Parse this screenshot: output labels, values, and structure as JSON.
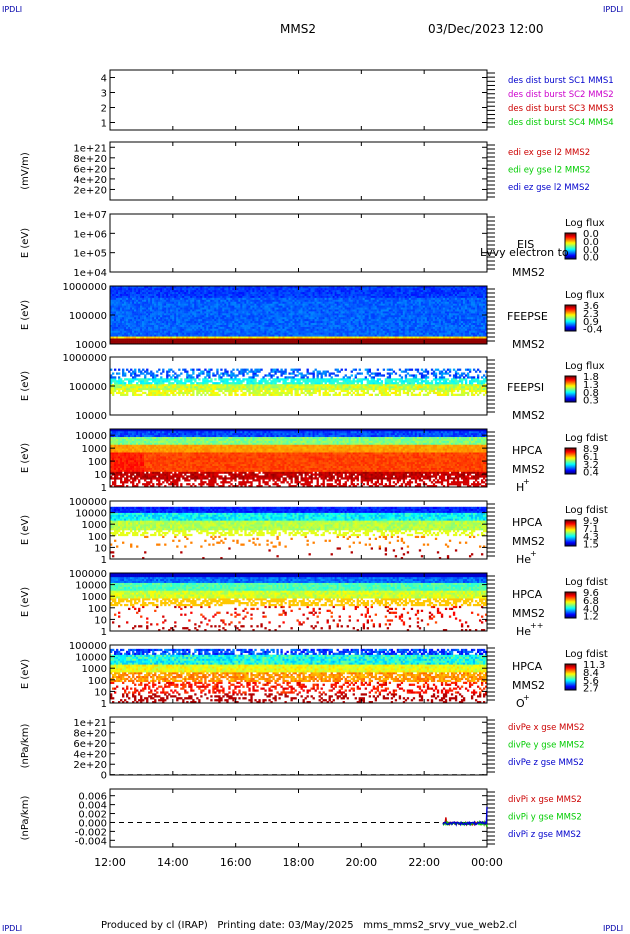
{
  "header": {
    "corner_label": "IPDLI",
    "spacecraft": "MMS2",
    "date_time": "03/Dec/2023 12:00"
  },
  "footer": {
    "produced_by": "Produced by cl (IRAP)",
    "printing_date": "Printing date: 03/May/2025",
    "script_name": "mms_mms2_srvy_vue_web2.cl"
  },
  "colors": {
    "red": "#cc0000",
    "green": "#00cc00",
    "blue": "#0000cc",
    "magenta": "#cc00cc",
    "dashed": "#000000"
  },
  "chart_data": [
    {
      "id": "panel1",
      "type": "line",
      "ylim": [
        0.5,
        4.5
      ],
      "yticks": [
        "1",
        "2",
        "3",
        "4"
      ],
      "legend": [
        {
          "text": "des dist burst SC1 MMS1",
          "color": "#0000cc"
        },
        {
          "text": "des dist burst SC2 MMS2",
          "color": "#cc00cc"
        },
        {
          "text": "des dist burst SC3 MMS3",
          "color": "#cc0000"
        },
        {
          "text": "des dist burst SC4 MMS4",
          "color": "#00cc00"
        }
      ]
    },
    {
      "id": "panel2",
      "type": "line",
      "ylabel": "(mV/m)",
      "ylim": [
        0,
        1.1e+21
      ],
      "yticks": [
        "2e+20",
        "4e+20",
        "6e+20",
        "8e+20",
        "1e+21"
      ],
      "zero_line": true,
      "legend": [
        {
          "text": "edi ex gse l2 MMS2",
          "color": "#cc0000"
        },
        {
          "text": "edi ey gse l2 MMS2",
          "color": "#00cc00"
        },
        {
          "text": "edi ez gse l2 MMS2",
          "color": "#0000cc"
        }
      ]
    },
    {
      "id": "panel3",
      "type": "heatmap",
      "ylabel": "E (eV)",
      "yscale": "log",
      "ylim": [
        10000.0,
        10000000.0
      ],
      "yticks": [
        "1e+04",
        "1e+05",
        "1e+06",
        "1e+07"
      ],
      "instrument": "EIS",
      "spacecraft": "MMS2",
      "overlay": "Lvvy electron to",
      "colorbar": {
        "title": "Log flux",
        "ticks": [
          "0.0",
          "0.0",
          "0.0",
          "0.0"
        ]
      },
      "pattern": "empty"
    },
    {
      "id": "panel4",
      "type": "heatmap",
      "ylabel": "E (eV)",
      "yscale": "log",
      "ylim": [
        10000.0,
        1000000.0
      ],
      "yticks": [
        "10000",
        "100000",
        "1000000"
      ],
      "instrument": "FEEPSE",
      "spacecraft": "MMS2",
      "colorbar": {
        "title": "Log flux",
        "ticks": [
          "3.6",
          "2.3",
          "0.9",
          "-0.4"
        ]
      },
      "pattern": "feepse"
    },
    {
      "id": "panel5",
      "type": "heatmap",
      "ylabel": "E (eV)",
      "yscale": "log",
      "ylim": [
        10000.0,
        1000000.0
      ],
      "yticks": [
        "10000",
        "100000",
        "1000000"
      ],
      "instrument": "FEEPSI",
      "spacecraft": "MMS2",
      "colorbar": {
        "title": "Log flux",
        "ticks": [
          "1.8",
          "1.3",
          "0.8",
          "0.3"
        ]
      },
      "pattern": "feepsi"
    },
    {
      "id": "panel6",
      "type": "heatmap",
      "ylabel": "E (eV)",
      "yscale": "log",
      "ylim": [
        1,
        30000.0
      ],
      "yticks": [
        "1",
        "10",
        "100",
        "1000",
        "10000"
      ],
      "instrument": "HPCA",
      "spacecraft": "MMS2",
      "species": "H",
      "charge": "+",
      "colorbar": {
        "title": "Log fdist",
        "ticks": [
          "8.9",
          "6.1",
          "3.2",
          "0.4"
        ]
      },
      "pattern": "hpca_h"
    },
    {
      "id": "panel7",
      "type": "heatmap",
      "ylabel": "E (eV)",
      "yscale": "log",
      "ylim": [
        1,
        100000.0
      ],
      "yticks": [
        "1",
        "10",
        "100",
        "1000",
        "10000",
        "100000"
      ],
      "instrument": "HPCA",
      "spacecraft": "MMS2",
      "species": "He",
      "charge": "+",
      "colorbar": {
        "title": "Log fdist",
        "ticks": [
          "9.9",
          "7.1",
          "4.3",
          "1.5"
        ]
      },
      "pattern": "hpca_he"
    },
    {
      "id": "panel8",
      "type": "heatmap",
      "ylabel": "E (eV)",
      "yscale": "log",
      "ylim": [
        1,
        100000.0
      ],
      "yticks": [
        "1",
        "10",
        "100",
        "1000",
        "10000",
        "100000"
      ],
      "instrument": "HPCA",
      "spacecraft": "MMS2",
      "species": "He",
      "charge": "++",
      "colorbar": {
        "title": "Log fdist",
        "ticks": [
          "9.6",
          "6.8",
          "4.0",
          "1.2"
        ]
      },
      "pattern": "hpca_he2"
    },
    {
      "id": "panel9",
      "type": "heatmap",
      "ylabel": "E (eV)",
      "yscale": "log",
      "ylim": [
        1,
        100000.0
      ],
      "yticks": [
        "1",
        "10",
        "100",
        "1000",
        "10000",
        "100000"
      ],
      "instrument": "HPCA",
      "spacecraft": "MMS2",
      "species": "O",
      "charge": "+",
      "colorbar": {
        "title": "Log fdist",
        "ticks": [
          "11.3",
          "8.4",
          "5.6",
          "2.7"
        ]
      },
      "pattern": "hpca_o"
    },
    {
      "id": "panel10",
      "type": "line",
      "ylabel": "(nPa/km)",
      "ylim": [
        -5e+18,
        1.1e+21
      ],
      "yticks": [
        "0",
        "2e+20",
        "4e+20",
        "6e+20",
        "8e+20",
        "1e+21"
      ],
      "zero_line": true,
      "legend": [
        {
          "text": "divPe x gse MMS2",
          "color": "#cc0000"
        },
        {
          "text": "divPe y gse MMS2",
          "color": "#00cc00"
        },
        {
          "text": "divPe z gse MMS2",
          "color": "#0000cc"
        }
      ]
    },
    {
      "id": "panel11",
      "type": "line",
      "ylabel": "(nPa/km)",
      "ylim": [
        -0.0055,
        0.0075
      ],
      "yticks": [
        "-0.004",
        "-0.002",
        "0.000",
        "0.002",
        "0.004",
        "0.006"
      ],
      "zero_line": true,
      "legend": [
        {
          "text": "divPi x gse MMS2",
          "color": "#cc0000"
        },
        {
          "text": "divPi y gse MMS2",
          "color": "#00cc00"
        },
        {
          "text": "divPi z gse MMS2",
          "color": "#0000cc"
        }
      ],
      "series_window_hours": [
        22.6,
        24.0
      ]
    }
  ],
  "x_axis": {
    "range_hours": [
      12,
      24
    ],
    "ticks": [
      "12:00",
      "14:00",
      "16:00",
      "18:00",
      "20:00",
      "22:00",
      "00:00"
    ]
  }
}
